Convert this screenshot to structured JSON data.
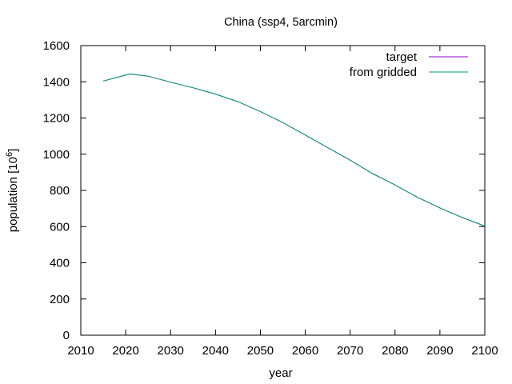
{
  "chart_data": {
    "type": "line",
    "title": "China (ssp4, 5arcmin)",
    "xlabel": "year",
    "ylabel": "population [10",
    "ylabel_sup": "6",
    "ylabel_suffix": "]",
    "xlim": [
      2010,
      2100
    ],
    "ylim": [
      0,
      1600
    ],
    "x_ticks": [
      2010,
      2020,
      2030,
      2040,
      2050,
      2060,
      2070,
      2080,
      2090,
      2100
    ],
    "y_ticks": [
      0,
      200,
      400,
      600,
      800,
      1000,
      1200,
      1400,
      1600
    ],
    "grid": false,
    "legend_position": "top-right",
    "series": [
      {
        "name": "target",
        "color": "#9400d3",
        "x": [
          2015,
          2020,
          2021,
          2025,
          2030,
          2035,
          2040,
          2045,
          2050,
          2055,
          2060,
          2065,
          2070,
          2075,
          2080,
          2085,
          2090,
          2095,
          2100
        ],
        "y": [
          1404,
          1437,
          1443,
          1431,
          1398,
          1367,
          1332,
          1290,
          1236,
          1175,
          1106,
          1036,
          967,
          893,
          830,
          762,
          703,
          650,
          603
        ]
      },
      {
        "name": "from gridded",
        "color": "#009e73",
        "x": [
          2015,
          2020,
          2021,
          2025,
          2030,
          2035,
          2040,
          2045,
          2050,
          2055,
          2060,
          2065,
          2070,
          2075,
          2080,
          2085,
          2090,
          2095,
          2100
        ],
        "y": [
          1404,
          1437,
          1443,
          1431,
          1398,
          1367,
          1332,
          1290,
          1236,
          1175,
          1106,
          1036,
          967,
          893,
          830,
          762,
          703,
          650,
          603
        ]
      }
    ]
  }
}
